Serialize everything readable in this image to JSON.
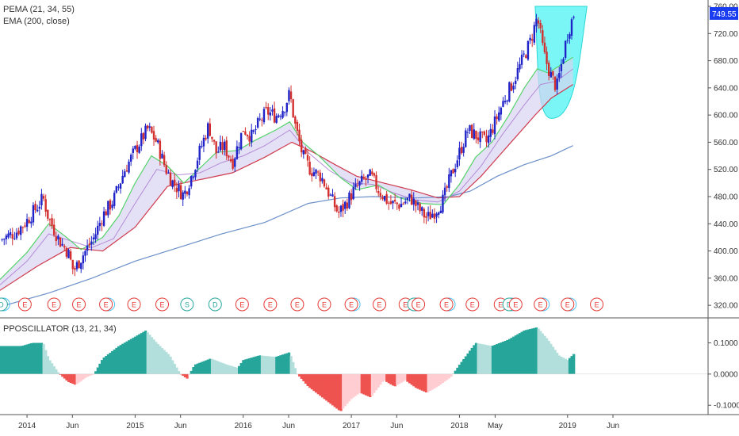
{
  "legend": {
    "pema": "PEMA (21, 34, 55)",
    "ema": "EMA (200, close)",
    "oscillator": "PPOSCILLATOR (13, 21, 34)"
  },
  "price_badge": "749.55",
  "colors": {
    "up": "#1f23c8",
    "down": "#d32f2f",
    "ema200": "#6b8fc9",
    "ema_short": "#56d36b",
    "ema_mid": "#b48bd6",
    "ema_long": "#cf3a4d",
    "band_fill": "#d9d4f2",
    "cup_fill": "#4ff3f3",
    "osc_pos_strong": "#26a69a",
    "osc_pos_weak": "#b2dfdb",
    "osc_neg_strong": "#ef5350",
    "osc_neg_weak": "#ffcdd2",
    "badge": "#1a3cf0"
  },
  "chart_data": [
    {
      "type": "candlestick",
      "title": "",
      "ylim": [
        305,
        760
      ],
      "y_ticks": [
        "760.00",
        "720.00",
        "680.00",
        "640.00",
        "600.00",
        "560.00",
        "520.00",
        "480.00",
        "440.00",
        "400.00",
        "360.00",
        "320.00"
      ],
      "y_tick_values": [
        760,
        720,
        680,
        640,
        600,
        560,
        520,
        480,
        440,
        400,
        360,
        320
      ],
      "x_ticks": [
        "2014",
        "Jun",
        "2015",
        "Jun",
        "2016",
        "Jun",
        "2017",
        "Jun",
        "2018",
        "May",
        "2019",
        "Jun"
      ],
      "x_tick_values": [
        2014.0,
        2014.42,
        2015.0,
        2015.42,
        2016.0,
        2016.42,
        2017.0,
        2017.42,
        2018.0,
        2018.33,
        2019.0,
        2019.42
      ],
      "xlim": [
        2013.75,
        2020.3
      ],
      "close_path": [
        [
          2013.75,
          416
        ],
        [
          2013.9,
          428
        ],
        [
          2014.0,
          445
        ],
        [
          2014.08,
          462
        ],
        [
          2014.15,
          478
        ],
        [
          2014.2,
          448
        ],
        [
          2014.3,
          415
        ],
        [
          2014.38,
          398
        ],
        [
          2014.43,
          370
        ],
        [
          2014.52,
          395
        ],
        [
          2014.62,
          420
        ],
        [
          2014.7,
          452
        ],
        [
          2014.8,
          475
        ],
        [
          2014.9,
          518
        ],
        [
          2015.0,
          548
        ],
        [
          2015.08,
          570
        ],
        [
          2015.12,
          580
        ],
        [
          2015.2,
          560
        ],
        [
          2015.28,
          522
        ],
        [
          2015.35,
          500
        ],
        [
          2015.45,
          482
        ],
        [
          2015.52,
          510
        ],
        [
          2015.6,
          548
        ],
        [
          2015.68,
          585
        ],
        [
          2015.75,
          545
        ],
        [
          2015.82,
          555
        ],
        [
          2015.9,
          530
        ],
        [
          2016.0,
          580
        ],
        [
          2016.08,
          568
        ],
        [
          2016.15,
          590
        ],
        [
          2016.22,
          605
        ],
        [
          2016.3,
          598
        ],
        [
          2016.38,
          612
        ],
        [
          2016.43,
          632
        ],
        [
          2016.48,
          585
        ],
        [
          2016.55,
          540
        ],
        [
          2016.62,
          520
        ],
        [
          2016.72,
          510
        ],
        [
          2016.82,
          475
        ],
        [
          2016.88,
          455
        ],
        [
          2016.95,
          470
        ],
        [
          2017.02,
          488
        ],
        [
          2017.1,
          502
        ],
        [
          2017.18,
          510
        ],
        [
          2017.25,
          490
        ],
        [
          2017.35,
          470
        ],
        [
          2017.45,
          468
        ],
        [
          2017.55,
          478
        ],
        [
          2017.62,
          462
        ],
        [
          2017.7,
          448
        ],
        [
          2017.78,
          460
        ],
        [
          2017.85,
          475
        ],
        [
          2017.92,
          510
        ],
        [
          2018.0,
          545
        ],
        [
          2018.08,
          578
        ],
        [
          2018.15,
          570
        ],
        [
          2018.25,
          560
        ],
        [
          2018.33,
          590
        ],
        [
          2018.42,
          625
        ],
        [
          2018.5,
          650
        ],
        [
          2018.58,
          680
        ],
        [
          2018.66,
          710
        ],
        [
          2018.72,
          745
        ],
        [
          2018.78,
          690
        ],
        [
          2018.84,
          660
        ],
        [
          2018.9,
          640
        ],
        [
          2018.95,
          680
        ],
        [
          2019.0,
          720
        ],
        [
          2019.06,
          749.55
        ]
      ],
      "ema200_path": [
        [
          2013.75,
          318
        ],
        [
          2014.2,
          338
        ],
        [
          2014.6,
          360
        ],
        [
          2015.0,
          385
        ],
        [
          2015.4,
          405
        ],
        [
          2015.8,
          425
        ],
        [
          2016.2,
          442
        ],
        [
          2016.6,
          470
        ],
        [
          2016.9,
          478
        ],
        [
          2017.2,
          480
        ],
        [
          2017.6,
          478
        ],
        [
          2017.9,
          480
        ],
        [
          2018.1,
          488
        ],
        [
          2018.35,
          510
        ],
        [
          2018.6,
          527
        ],
        [
          2018.85,
          540
        ],
        [
          2019.05,
          555
        ]
      ],
      "ema_short_path": [
        [
          2013.75,
          358
        ],
        [
          2014.0,
          398
        ],
        [
          2014.2,
          440
        ],
        [
          2014.35,
          422
        ],
        [
          2014.5,
          402
        ],
        [
          2014.7,
          420
        ],
        [
          2014.85,
          452
        ],
        [
          2015.0,
          500
        ],
        [
          2015.15,
          540
        ],
        [
          2015.3,
          525
        ],
        [
          2015.45,
          500
        ],
        [
          2015.6,
          522
        ],
        [
          2015.75,
          545
        ],
        [
          2015.95,
          548
        ],
        [
          2016.1,
          562
        ],
        [
          2016.3,
          578
        ],
        [
          2016.43,
          590
        ],
        [
          2016.55,
          560
        ],
        [
          2016.7,
          540
        ],
        [
          2016.9,
          508
        ],
        [
          2017.05,
          490
        ],
        [
          2017.25,
          497
        ],
        [
          2017.45,
          478
        ],
        [
          2017.65,
          470
        ],
        [
          2017.85,
          468
        ],
        [
          2018.0,
          498
        ],
        [
          2018.15,
          538
        ],
        [
          2018.3,
          560
        ],
        [
          2018.45,
          598
        ],
        [
          2018.6,
          640
        ],
        [
          2018.72,
          668
        ],
        [
          2018.82,
          662
        ],
        [
          2018.92,
          672
        ],
        [
          2019.05,
          685
        ]
      ],
      "ema_mid_path": [
        [
          2013.75,
          350
        ],
        [
          2014.0,
          385
        ],
        [
          2014.2,
          425
        ],
        [
          2014.4,
          415
        ],
        [
          2014.6,
          405
        ],
        [
          2014.8,
          418
        ],
        [
          2015.0,
          470
        ],
        [
          2015.2,
          520
        ],
        [
          2015.4,
          512
        ],
        [
          2015.6,
          515
        ],
        [
          2015.8,
          530
        ],
        [
          2016.0,
          540
        ],
        [
          2016.2,
          555
        ],
        [
          2016.43,
          578
        ],
        [
          2016.6,
          545
        ],
        [
          2016.8,
          518
        ],
        [
          2017.0,
          500
        ],
        [
          2017.2,
          498
        ],
        [
          2017.4,
          485
        ],
        [
          2017.6,
          475
        ],
        [
          2017.8,
          472
        ],
        [
          2018.0,
          488
        ],
        [
          2018.2,
          525
        ],
        [
          2018.4,
          572
        ],
        [
          2018.6,
          615
        ],
        [
          2018.75,
          645
        ],
        [
          2018.9,
          650
        ],
        [
          2019.05,
          668
        ]
      ],
      "ema_long_path": [
        [
          2013.75,
          342
        ],
        [
          2014.1,
          378
        ],
        [
          2014.4,
          405
        ],
        [
          2014.7,
          400
        ],
        [
          2015.0,
          435
        ],
        [
          2015.3,
          495
        ],
        [
          2015.6,
          505
        ],
        [
          2015.9,
          515
        ],
        [
          2016.2,
          538
        ],
        [
          2016.45,
          560
        ],
        [
          2016.65,
          545
        ],
        [
          2016.85,
          527
        ],
        [
          2017.05,
          510
        ],
        [
          2017.3,
          500
        ],
        [
          2017.55,
          490
        ],
        [
          2017.8,
          478
        ],
        [
          2018.0,
          480
        ],
        [
          2018.2,
          510
        ],
        [
          2018.45,
          555
        ],
        [
          2018.7,
          600
        ],
        [
          2018.85,
          625
        ],
        [
          2019.05,
          645
        ]
      ],
      "cup_shape": {
        "x_range": [
          2018.7,
          2019.18
        ],
        "y_top": 760,
        "y_bottom": 595,
        "x_bottom": 2018.85
      },
      "events": [
        {
          "label": "D",
          "type": "dividend"
        },
        {
          "label": "E",
          "type": "earnings"
        },
        {
          "label": "E",
          "type": "earnings"
        },
        {
          "label": "E",
          "type": "earnings"
        },
        {
          "label": "E",
          "type": "earnings"
        },
        {
          "label": "E",
          "type": "earnings"
        },
        {
          "label": "E",
          "type": "earnings"
        },
        {
          "label": "S",
          "type": "split"
        },
        {
          "label": "D",
          "type": "dividend"
        },
        {
          "label": "E",
          "type": "earnings"
        },
        {
          "label": "E",
          "type": "earnings"
        },
        {
          "label": "E",
          "type": "earnings"
        },
        {
          "label": "E",
          "type": "earnings"
        },
        {
          "label": "E",
          "type": "earnings"
        },
        {
          "label": "E",
          "type": "earnings"
        },
        {
          "label": "E",
          "type": "earnings"
        },
        {
          "label": "D",
          "type": "dividend"
        },
        {
          "label": "E",
          "type": "earnings"
        },
        {
          "label": "E",
          "type": "earnings"
        },
        {
          "label": "E",
          "type": "earnings"
        },
        {
          "label": "E",
          "type": "earnings"
        },
        {
          "label": "D",
          "type": "dividend"
        },
        {
          "label": "E",
          "type": "earnings"
        },
        {
          "label": "E",
          "type": "earnings"
        },
        {
          "label": "E",
          "type": "earnings"
        },
        {
          "label": "E",
          "type": "earnings"
        }
      ],
      "event_x": [
        2013.76,
        2013.98,
        2014.25,
        2014.48,
        2014.73,
        2014.99,
        2015.25,
        2015.48,
        2015.74,
        2015.99,
        2016.25,
        2016.5,
        2016.75,
        2017.0,
        2017.26,
        2017.5,
        2017.58,
        2017.62,
        2017.88,
        2018.12,
        2018.38,
        2018.46,
        2018.52,
        2018.75,
        2019.0,
        2019.27
      ],
      "event_ring": [
        true,
        false,
        false,
        false,
        true,
        false,
        false,
        false,
        false,
        false,
        false,
        false,
        false,
        true,
        false,
        false,
        true,
        false,
        true,
        false,
        false,
        true,
        false,
        true,
        true,
        false
      ]
    },
    {
      "type": "bar",
      "title": "",
      "name": "PPOSCILLATOR (13, 21, 34)",
      "ylim": [
        -0.13,
        0.17
      ],
      "y_ticks": [
        "0.1000",
        "0.0000",
        "-0.1000"
      ],
      "y_tick_values": [
        0.1,
        0.0,
        -0.1
      ],
      "osc_path": [
        [
          2013.75,
          0.09
        ],
        [
          2013.95,
          0.09
        ],
        [
          2014.05,
          0.1
        ],
        [
          2014.15,
          0.1
        ],
        [
          2014.2,
          0.05
        ],
        [
          2014.3,
          0.0
        ],
        [
          2014.38,
          -0.025
        ],
        [
          2014.45,
          -0.035
        ],
        [
          2014.55,
          -0.01
        ],
        [
          2014.62,
          0.0
        ],
        [
          2014.7,
          0.05
        ],
        [
          2014.85,
          0.09
        ],
        [
          2015.0,
          0.12
        ],
        [
          2015.1,
          0.14
        ],
        [
          2015.2,
          0.1
        ],
        [
          2015.32,
          0.06
        ],
        [
          2015.42,
          0.0
        ],
        [
          2015.48,
          -0.015
        ],
        [
          2015.55,
          0.03
        ],
        [
          2015.7,
          0.05
        ],
        [
          2015.85,
          0.03
        ],
        [
          2015.95,
          0.02
        ],
        [
          2016.0,
          0.045
        ],
        [
          2016.15,
          0.06
        ],
        [
          2016.3,
          0.055
        ],
        [
          2016.43,
          0.07
        ],
        [
          2016.5,
          0.0
        ],
        [
          2016.6,
          -0.04
        ],
        [
          2016.75,
          -0.08
        ],
        [
          2016.9,
          -0.12
        ],
        [
          2017.0,
          -0.08
        ],
        [
          2017.08,
          -0.06
        ],
        [
          2017.18,
          -0.075
        ],
        [
          2017.3,
          -0.02
        ],
        [
          2017.4,
          -0.04
        ],
        [
          2017.5,
          -0.02
        ],
        [
          2017.6,
          -0.045
        ],
        [
          2017.7,
          -0.06
        ],
        [
          2017.8,
          -0.04
        ],
        [
          2017.92,
          -0.01
        ],
        [
          2018.0,
          0.03
        ],
        [
          2018.15,
          0.1
        ],
        [
          2018.3,
          0.09
        ],
        [
          2018.45,
          0.11
        ],
        [
          2018.6,
          0.14
        ],
        [
          2018.72,
          0.15
        ],
        [
          2018.82,
          0.11
        ],
        [
          2018.92,
          0.06
        ],
        [
          2019.0,
          0.045
        ],
        [
          2019.06,
          0.065
        ]
      ]
    }
  ]
}
